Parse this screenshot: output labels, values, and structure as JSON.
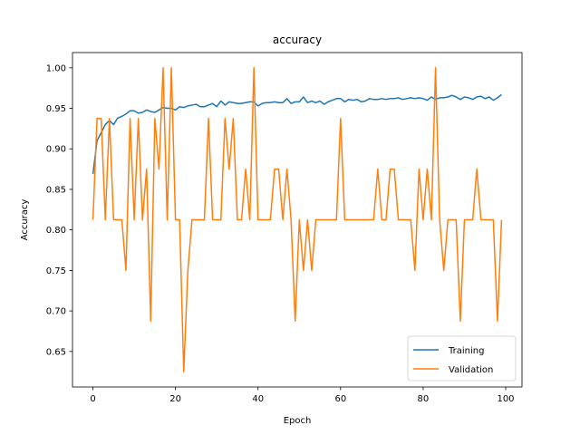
{
  "chart_data": {
    "type": "line",
    "title": "accuracy",
    "xlabel": "Epoch",
    "ylabel": "Accuracy",
    "xlim": [
      -4.95,
      103.95
    ],
    "ylim": [
      0.6062,
      1.0188
    ],
    "xticks": [
      0,
      20,
      40,
      60,
      80,
      100
    ],
    "yticks": [
      0.65,
      0.7,
      0.75,
      0.8,
      0.85,
      0.9,
      0.95,
      1.0
    ],
    "ytick_labels": [
      "0.65",
      "0.70",
      "0.75",
      "0.80",
      "0.85",
      "0.90",
      "0.95",
      "1.00"
    ],
    "grid": false,
    "legend_position": "lower right",
    "series": [
      {
        "name": "Training",
        "color": "#1f77b4",
        "x": [
          0,
          1,
          2,
          3,
          4,
          5,
          6,
          7,
          8,
          9,
          10,
          11,
          12,
          13,
          14,
          15,
          16,
          17,
          18,
          19,
          20,
          21,
          22,
          23,
          24,
          25,
          26,
          27,
          28,
          29,
          30,
          31,
          32,
          33,
          34,
          35,
          36,
          37,
          38,
          39,
          40,
          41,
          42,
          43,
          44,
          45,
          46,
          47,
          48,
          49,
          50,
          51,
          52,
          53,
          54,
          55,
          56,
          57,
          58,
          59,
          60,
          61,
          62,
          63,
          64,
          65,
          66,
          67,
          68,
          69,
          70,
          71,
          72,
          73,
          74,
          75,
          76,
          77,
          78,
          79,
          80,
          81,
          82,
          83,
          84,
          85,
          86,
          87,
          88,
          89,
          90,
          91,
          92,
          93,
          94,
          95,
          96,
          97,
          98,
          99
        ],
        "values": [
          0.869,
          0.91,
          0.92,
          0.93,
          0.935,
          0.93,
          0.938,
          0.94,
          0.943,
          0.947,
          0.947,
          0.944,
          0.945,
          0.948,
          0.946,
          0.945,
          0.948,
          0.951,
          0.95,
          0.95,
          0.948,
          0.952,
          0.951,
          0.953,
          0.954,
          0.955,
          0.952,
          0.952,
          0.954,
          0.956,
          0.952,
          0.959,
          0.954,
          0.958,
          0.957,
          0.956,
          0.956,
          0.957,
          0.958,
          0.958,
          0.953,
          0.956,
          0.957,
          0.957,
          0.958,
          0.957,
          0.957,
          0.962,
          0.956,
          0.958,
          0.958,
          0.964,
          0.957,
          0.959,
          0.957,
          0.959,
          0.955,
          0.958,
          0.96,
          0.962,
          0.962,
          0.958,
          0.961,
          0.96,
          0.961,
          0.958,
          0.959,
          0.962,
          0.961,
          0.961,
          0.962,
          0.961,
          0.962,
          0.962,
          0.963,
          0.961,
          0.962,
          0.963,
          0.962,
          0.963,
          0.962,
          0.96,
          0.964,
          0.961,
          0.963,
          0.963,
          0.964,
          0.966,
          0.964,
          0.961,
          0.964,
          0.963,
          0.961,
          0.964,
          0.965,
          0.962,
          0.964,
          0.96,
          0.963,
          0.967
        ]
      },
      {
        "name": "Validation",
        "color": "#ff7f0e",
        "x": [
          0,
          1,
          2,
          3,
          4,
          5,
          6,
          7,
          8,
          9,
          10,
          11,
          12,
          13,
          14,
          15,
          16,
          17,
          18,
          19,
          20,
          21,
          22,
          23,
          24,
          25,
          26,
          27,
          28,
          29,
          30,
          31,
          32,
          33,
          34,
          35,
          36,
          37,
          38,
          39,
          40,
          41,
          42,
          43,
          44,
          45,
          46,
          47,
          48,
          49,
          50,
          51,
          52,
          53,
          54,
          55,
          56,
          57,
          58,
          59,
          60,
          61,
          62,
          63,
          64,
          65,
          66,
          67,
          68,
          69,
          70,
          71,
          72,
          73,
          74,
          75,
          76,
          77,
          78,
          79,
          80,
          81,
          82,
          83,
          84,
          85,
          86,
          87,
          88,
          89,
          90,
          91,
          92,
          93,
          94,
          95,
          96,
          97,
          98,
          99
        ],
        "values": [
          0.8125,
          0.9375,
          0.9375,
          0.8125,
          0.9375,
          0.8125,
          0.8125,
          0.8125,
          0.75,
          0.9375,
          0.8125,
          0.9375,
          0.8125,
          0.875,
          0.6875,
          0.9375,
          0.875,
          1.0,
          0.8125,
          1.0,
          0.8125,
          0.8125,
          0.625,
          0.75,
          0.8125,
          0.8125,
          0.8125,
          0.8125,
          0.9375,
          0.8125,
          0.8125,
          0.8125,
          0.9375,
          0.875,
          0.9375,
          0.8125,
          0.8125,
          0.875,
          0.8125,
          1.0,
          0.8125,
          0.8125,
          0.8125,
          0.8125,
          0.875,
          0.875,
          0.8125,
          0.875,
          0.8125,
          0.6875,
          0.8125,
          0.75,
          0.8125,
          0.75,
          0.8125,
          0.8125,
          0.8125,
          0.8125,
          0.8125,
          0.8125,
          0.9375,
          0.8125,
          0.8125,
          0.8125,
          0.8125,
          0.8125,
          0.8125,
          0.8125,
          0.8125,
          0.875,
          0.8125,
          0.8125,
          0.875,
          0.875,
          0.8125,
          0.8125,
          0.8125,
          0.8125,
          0.75,
          0.875,
          0.8125,
          0.875,
          0.8125,
          1.0,
          0.8125,
          0.75,
          0.8125,
          0.8125,
          0.8125,
          0.6875,
          0.8125,
          0.8125,
          0.8125,
          0.875,
          0.8125,
          0.8125,
          0.8125,
          0.8125,
          0.6875,
          0.8125
        ]
      }
    ]
  }
}
